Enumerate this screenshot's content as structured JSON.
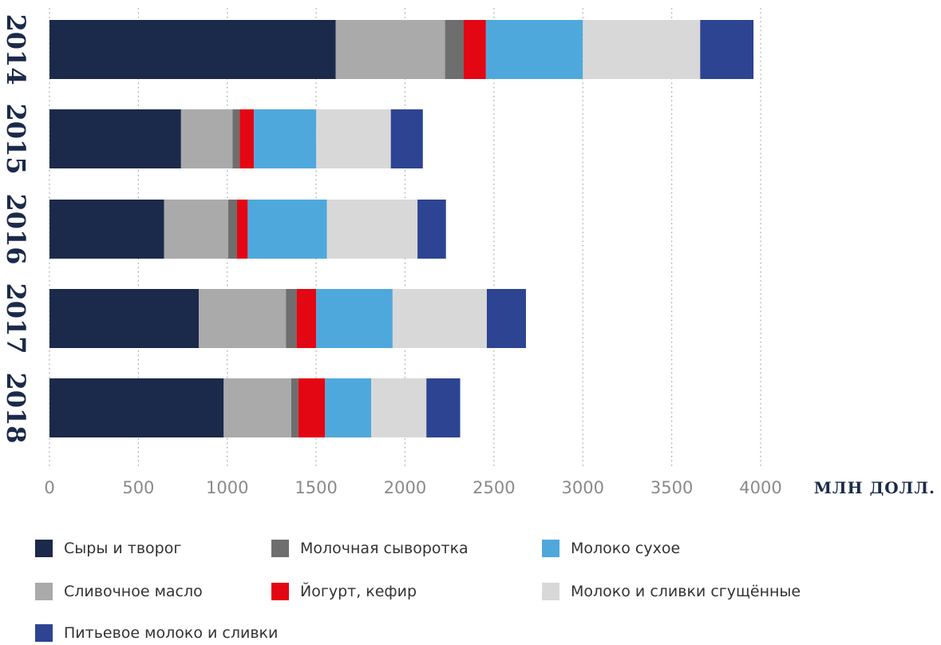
{
  "chart_data": {
    "type": "bar",
    "orientation": "horizontal",
    "stacked": true,
    "categories": [
      "2014",
      "2015",
      "2016",
      "2017",
      "2018"
    ],
    "xlabel": "МЛН ДОЛЛ.",
    "xlim": [
      0,
      4000
    ],
    "xticks": [
      0,
      500,
      1000,
      1500,
      2000,
      2500,
      3000,
      3500,
      4000
    ],
    "grid": "vertical dotted",
    "legend_position": "bottom",
    "series": [
      {
        "name": "Сыры и творог",
        "color": "#1b2a4a",
        "values": [
          1610,
          740,
          645,
          840,
          980
        ]
      },
      {
        "name": "Сливочное масло",
        "color": "#aaaaaa",
        "values": [
          615,
          290,
          360,
          490,
          380
        ]
      },
      {
        "name": "Молочная сыворотка",
        "color": "#6e6e6e",
        "values": [
          105,
          40,
          50,
          60,
          40
        ]
      },
      {
        "name": "Йогурт, кефир",
        "color": "#e30613",
        "values": [
          125,
          80,
          60,
          110,
          150
        ]
      },
      {
        "name": "Молоко сухое",
        "color": "#4fa8dc",
        "values": [
          545,
          350,
          445,
          430,
          260
        ]
      },
      {
        "name": "Молоко и сливки сгущённые",
        "color": "#d8d8d8",
        "values": [
          660,
          420,
          510,
          530,
          310
        ]
      },
      {
        "name": "Питьевое молоко и сливки",
        "color": "#2d4492",
        "values": [
          300,
          180,
          160,
          220,
          190
        ]
      }
    ]
  },
  "legend_layout": [
    [
      "Сыры и творог",
      "Молочная сыворотка",
      "Молоко сухое"
    ],
    [
      "Сливочное масло",
      "Йогурт, кефир",
      "Молоко и сливки сгущённые"
    ],
    [
      "Питьевое молоко и сливки"
    ]
  ]
}
